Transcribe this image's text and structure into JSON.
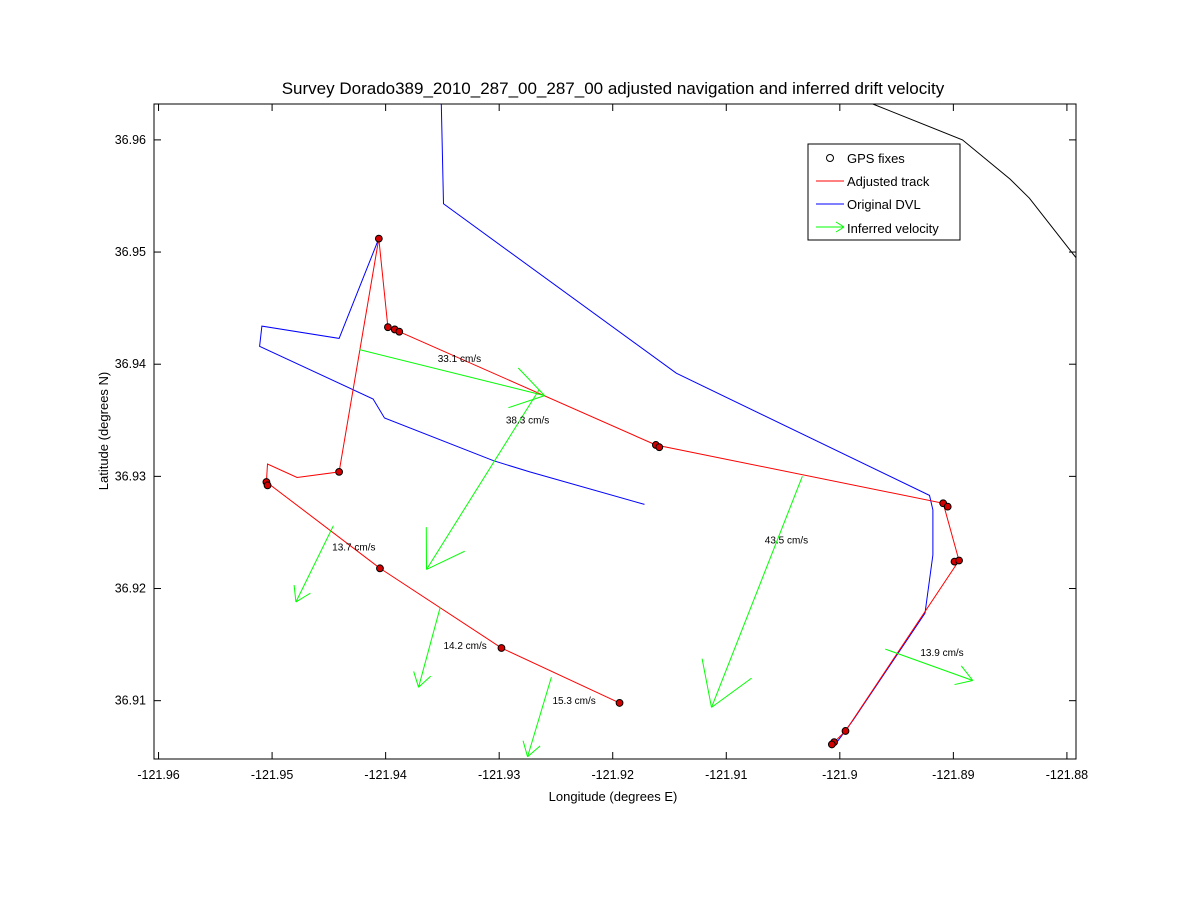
{
  "chart_data": {
    "type": "line",
    "title": "Survey Dorado389_2010_287_00_287_00 adjusted navigation and inferred drift velocity",
    "xlabel": "Longitude (degrees E)",
    "ylabel": "Latitude (degrees N)",
    "xlim": [
      -121.9604,
      -121.8792
    ],
    "ylim": [
      36.9048,
      36.9632
    ],
    "xticks": [
      -121.96,
      -121.95,
      -121.94,
      -121.93,
      -121.92,
      -121.91,
      -121.9,
      -121.89,
      -121.88
    ],
    "yticks": [
      36.91,
      36.92,
      36.93,
      36.94,
      36.95,
      36.96
    ],
    "xtick_labels": [
      "-121.96",
      "-121.95",
      "-121.94",
      "-121.93",
      "-121.92",
      "-121.91",
      "-121.9",
      "-121.89",
      "-121.88"
    ],
    "ytick_labels": [
      "36.91",
      "36.92",
      "36.93",
      "36.94",
      "36.95",
      "36.96"
    ],
    "legend_position": "top-right",
    "legend": [
      {
        "label": "GPS fixes",
        "color": "#000000",
        "marker": "circle"
      },
      {
        "label": "Adjusted track",
        "color": "#ff0000",
        "marker": "line"
      },
      {
        "label": "Original DVL",
        "color": "#0000ff",
        "marker": "line"
      },
      {
        "label": "Inferred velocity",
        "color": "#00ff00",
        "marker": "arrow"
      }
    ],
    "gps_fixes": [
      {
        "x": -121.9406,
        "y": 36.9512
      },
      {
        "x": -121.9398,
        "y": 36.9433
      },
      {
        "x": -121.9392,
        "y": 36.9431
      },
      {
        "x": -121.9388,
        "y": 36.9429
      },
      {
        "x": -121.9162,
        "y": 36.9328
      },
      {
        "x": -121.9159,
        "y": 36.9326
      },
      {
        "x": -121.8909,
        "y": 36.9276
      },
      {
        "x": -121.8905,
        "y": 36.9273
      },
      {
        "x": -121.8899,
        "y": 36.9224
      },
      {
        "x": -121.8895,
        "y": 36.9225
      },
      {
        "x": -121.8995,
        "y": 36.9073
      },
      {
        "x": -121.9005,
        "y": 36.9063
      },
      {
        "x": -121.9007,
        "y": 36.9061
      },
      {
        "x": -121.9441,
        "y": 36.9304
      },
      {
        "x": -121.9505,
        "y": 36.9295
      },
      {
        "x": -121.9504,
        "y": 36.9292
      },
      {
        "x": -121.9405,
        "y": 36.9218
      },
      {
        "x": -121.9298,
        "y": 36.9147
      },
      {
        "x": -121.9194,
        "y": 36.9098
      }
    ],
    "series": [
      {
        "name": "Adjusted track",
        "color": "#ff0000",
        "points": [
          [
            -121.9406,
            36.9512
          ],
          [
            -121.9398,
            36.9433
          ],
          [
            -121.9388,
            36.9429
          ],
          [
            -121.9162,
            36.9328
          ],
          [
            -121.8909,
            36.9276
          ],
          [
            -121.8895,
            36.9225
          ],
          [
            -121.8995,
            36.9073
          ],
          [
            -121.9005,
            36.9063
          ]
        ]
      },
      {
        "name": "Adjusted track",
        "color": "#ff0000",
        "points": [
          [
            -121.9406,
            36.9512
          ],
          [
            -121.9441,
            36.9304
          ],
          [
            -121.9478,
            36.9299
          ],
          [
            -121.9504,
            36.9311
          ],
          [
            -121.9505,
            36.9295
          ],
          [
            -121.9405,
            36.9218
          ],
          [
            -121.9298,
            36.9147
          ],
          [
            -121.9194,
            36.9098
          ]
        ]
      },
      {
        "name": "Original DVL",
        "color": "#0000ff",
        "points": [
          [
            -121.9004,
            36.9061
          ],
          [
            -121.8988,
            36.9083
          ],
          [
            -121.8925,
            36.9178
          ],
          [
            -121.8918,
            36.923
          ],
          [
            -121.8918,
            36.927
          ],
          [
            -121.8921,
            36.9283
          ],
          [
            -121.9144,
            36.9392
          ],
          [
            -121.9349,
            36.9543
          ],
          [
            -121.9351,
            36.9632
          ]
        ]
      },
      {
        "name": "Original DVL",
        "color": "#0000ff",
        "points": [
          [
            -121.9406,
            36.9512
          ],
          [
            -121.9441,
            36.9423
          ],
          [
            -121.9509,
            36.9434
          ],
          [
            -121.9511,
            36.9416
          ],
          [
            -121.9411,
            36.9369
          ],
          [
            -121.9401,
            36.9352
          ],
          [
            -121.9305,
            36.9314
          ],
          [
            -121.9273,
            36.9304
          ],
          [
            -121.9172,
            36.9275
          ]
        ]
      },
      {
        "name": "Coastline",
        "color": "#000000",
        "points": [
          [
            -121.8971,
            36.9632
          ],
          [
            -121.8892,
            36.96
          ],
          [
            -121.885,
            36.9565
          ],
          [
            -121.8833,
            36.9548
          ],
          [
            -121.8792,
            36.9495
          ]
        ]
      }
    ],
    "velocity_arrows": [
      {
        "label": "33.1 cm/s",
        "x0": -121.9423,
        "y0": 36.9413,
        "x1": -121.926,
        "y1": 36.9372,
        "lx": -121.9335,
        "ly": 36.9402
      },
      {
        "label": "38.3 cm/s",
        "x0": -121.9265,
        "y0": 36.9377,
        "x1": -121.9364,
        "y1": 36.9217,
        "lx": -121.9275,
        "ly": 36.9347
      },
      {
        "label": "13.7 cm/s",
        "x0": -121.9446,
        "y0": 36.9256,
        "x1": -121.9479,
        "y1": 36.9188,
        "lx": -121.9428,
        "ly": 36.9234
      },
      {
        "label": "14.2 cm/s",
        "x0": -121.9352,
        "y0": 36.9183,
        "x1": -121.9371,
        "y1": 36.9112,
        "lx": -121.933,
        "ly": 36.9146
      },
      {
        "label": "15.3 cm/s",
        "x0": -121.9254,
        "y0": 36.9121,
        "x1": -121.9275,
        "y1": 36.905,
        "lx": -121.9234,
        "ly": 36.9097
      },
      {
        "label": "43.5 cm/s",
        "x0": -121.9033,
        "y0": 36.93,
        "x1": -121.9113,
        "y1": 36.9094,
        "lx": -121.9047,
        "ly": 36.924
      },
      {
        "label": "13.9 cm/s",
        "x0": -121.896,
        "y0": 36.9146,
        "x1": -121.8883,
        "y1": 36.9118,
        "lx": -121.891,
        "ly": 36.914
      }
    ]
  }
}
